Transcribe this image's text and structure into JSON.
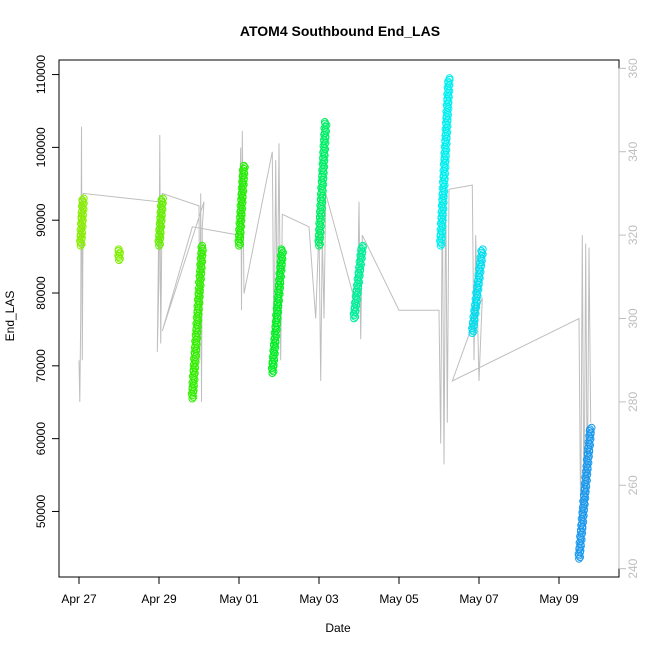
{
  "chart_data": {
    "type": "scatter",
    "title": "ATOM4 Southbound End_LAS",
    "xlabel": "Date",
    "ylabel": "End_LAS",
    "x_ticks": [
      "Apr 27",
      "Apr 29",
      "May 01",
      "May 03",
      "May 05",
      "May 07",
      "May 09"
    ],
    "y_ticks": [
      "50000",
      "60000",
      "70000",
      "80000",
      "90000",
      "100000",
      "110000"
    ],
    "y2_ticks": [
      "240",
      "260",
      "280",
      "300",
      "320",
      "340",
      "360"
    ],
    "ylim": [
      41000,
      112000
    ],
    "y2lim": [
      238,
      362
    ],
    "xlim": [
      "2023-04-26T12:00",
      "2023-05-10T12:00"
    ],
    "grid": false,
    "colors": {
      "line": "#bebebe",
      "axis": "#000000",
      "secondary_axis": "#bebebe"
    },
    "series": [
      {
        "color": "#88ee00",
        "points": [
          [
            "2023-04-27T01:00",
            86500
          ],
          [
            "2023-04-27T02:30",
            93000
          ]
        ]
      },
      {
        "color": "#80ee00",
        "points": [
          [
            "2023-04-28T00:00",
            84500
          ],
          [
            "2023-04-28T00:10",
            86000
          ]
        ]
      },
      {
        "color": "#66ee00",
        "points": [
          [
            "2023-04-29T00:00",
            86500
          ],
          [
            "2023-04-29T02:00",
            93000
          ]
        ]
      },
      {
        "color": "#33ee00",
        "points": [
          [
            "2023-04-29T20:00",
            65500
          ],
          [
            "2023-04-30T02:00",
            86500
          ]
        ]
      },
      {
        "color": "#22ee00",
        "points": [
          [
            "2023-05-01T00:00",
            86500
          ],
          [
            "2023-05-01T03:00",
            97500
          ]
        ]
      },
      {
        "color": "#00ee22",
        "points": [
          [
            "2023-05-01T20:00",
            69000
          ],
          [
            "2023-05-02T02:00",
            86000
          ]
        ]
      },
      {
        "color": "#00ee66",
        "points": [
          [
            "2023-05-03T00:00",
            86500
          ],
          [
            "2023-05-03T04:00",
            103500
          ]
        ]
      },
      {
        "color": "#00ee99",
        "points": [
          [
            "2023-05-03T21:00",
            76500
          ],
          [
            "2023-05-04T02:00",
            86500
          ]
        ]
      },
      {
        "color": "#00eeee",
        "points": [
          [
            "2023-05-06T01:00",
            86500
          ],
          [
            "2023-05-06T06:00",
            109500
          ]
        ]
      },
      {
        "color": "#00ddee",
        "points": [
          [
            "2023-05-06T20:00",
            74500
          ],
          [
            "2023-05-07T02:00",
            86000
          ]
        ]
      },
      {
        "color": "#1a99ee",
        "points": [
          [
            "2023-05-09T12:00",
            43500
          ],
          [
            "2023-05-09T19:00",
            61500
          ]
        ]
      }
    ],
    "secondary_series": {
      "name": "",
      "color": "#bebebe",
      "axis": "right",
      "approx_path": [
        [
          "2023-04-27T00:00",
          290
        ],
        [
          "2023-04-27T00:30",
          280
        ],
        [
          "2023-04-27T01:00",
          300
        ],
        [
          "2023-04-27T01:30",
          346
        ],
        [
          "2023-04-27T02:00",
          290
        ],
        [
          "2023-04-27T02:30",
          330
        ],
        [
          "2023-04-29T00:00",
          328
        ],
        [
          "2023-04-28T23:00",
          292
        ],
        [
          "2023-04-29T00:00",
          310
        ],
        [
          "2023-04-29T00:30",
          344
        ],
        [
          "2023-04-29T01:00",
          294
        ],
        [
          "2023-04-29T02:00",
          330
        ],
        [
          "2023-04-30T00:00",
          327
        ],
        [
          "2023-04-30T00:30",
          290
        ],
        [
          "2023-04-30T01:00",
          330
        ],
        [
          "2023-04-30T01:30",
          280
        ],
        [
          "2023-04-30T02:00",
          322
        ],
        [
          "2023-04-30T03:00",
          328
        ],
        [
          "2023-04-29T02:00",
          297
        ],
        [
          "2023-04-29T20:00",
          322
        ],
        [
          "2023-05-01T00:00",
          320
        ],
        [
          "2023-05-01T01:00",
          341
        ],
        [
          "2023-05-01T01:30",
          302
        ],
        [
          "2023-05-01T02:00",
          345
        ],
        [
          "2023-05-01T03:00",
          306
        ],
        [
          "2023-05-01T20:00",
          340
        ],
        [
          "2023-05-01T21:00",
          290
        ],
        [
          "2023-05-01T22:00",
          338
        ],
        [
          "2023-05-01T23:00",
          300
        ],
        [
          "2023-05-02T00:00",
          342
        ],
        [
          "2023-05-02T01:00",
          290
        ],
        [
          "2023-05-02T02:00",
          325
        ],
        [
          "2023-05-02T18:00",
          322
        ],
        [
          "2023-05-02T22:00",
          300
        ],
        [
          "2023-05-03T00:00",
          322
        ],
        [
          "2023-05-03T01:00",
          285
        ],
        [
          "2023-05-03T02:00",
          320
        ],
        [
          "2023-05-03T03:00",
          300
        ],
        [
          "2023-05-03T04:00",
          330
        ],
        [
          "2023-05-03T23:00",
          302
        ],
        [
          "2023-05-04T00:00",
          328
        ],
        [
          "2023-05-04T01:00",
          295
        ],
        [
          "2023-05-04T02:00",
          320
        ],
        [
          "2023-05-05T00:00",
          302
        ],
        [
          "2023-05-06T00:00",
          302
        ],
        [
          "2023-05-06T01:00",
          270
        ],
        [
          "2023-05-06T02:00",
          330
        ],
        [
          "2023-05-06T03:00",
          265
        ],
        [
          "2023-05-06T04:00",
          332
        ],
        [
          "2023-05-06T05:00",
          275
        ],
        [
          "2023-05-06T06:00",
          331
        ],
        [
          "2023-05-06T20:00",
          332
        ],
        [
          "2023-05-06T21:00",
          290
        ],
        [
          "2023-05-06T22:00",
          320
        ],
        [
          "2023-05-07T00:00",
          285
        ],
        [
          "2023-05-07T02:00",
          305
        ],
        [
          "2023-05-06T08:00",
          285
        ],
        [
          "2023-05-09T12:00",
          300
        ],
        [
          "2023-05-09T13:00",
          250
        ],
        [
          "2023-05-09T14:00",
          320
        ],
        [
          "2023-05-09T15:00",
          250
        ],
        [
          "2023-05-09T16:00",
          318
        ],
        [
          "2023-05-09T17:00",
          255
        ],
        [
          "2023-05-09T18:00",
          317
        ],
        [
          "2023-05-09T19:00",
          275
        ]
      ]
    }
  }
}
